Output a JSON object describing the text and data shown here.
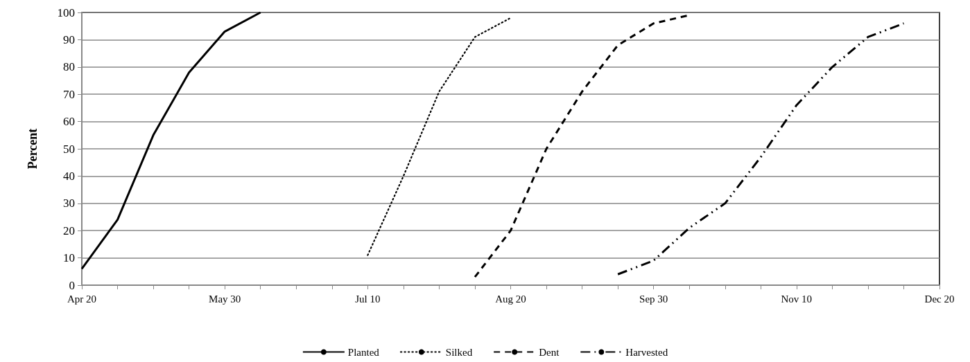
{
  "chart_data": {
    "type": "line",
    "ylabel": "Percent",
    "categories": [
      "Apr 20",
      null,
      null,
      null,
      "May 30",
      null,
      null,
      null,
      "Jul 10",
      null,
      null,
      null,
      "Aug 20",
      null,
      null,
      null,
      "Sep 30",
      null,
      null,
      null,
      "Nov 10",
      null,
      null,
      null,
      "Dec 20"
    ],
    "series": [
      {
        "name": "Planted",
        "color": "#000000",
        "line_style": "solid",
        "values": [
          6,
          24,
          55,
          78,
          93,
          100,
          null,
          null,
          null,
          null,
          null,
          null,
          null,
          null,
          null,
          null,
          null,
          null,
          null,
          null,
          null,
          null,
          null,
          null,
          null
        ]
      },
      {
        "name": "Silked",
        "color": "#000000",
        "line_style": "dotted",
        "values": [
          null,
          null,
          null,
          null,
          null,
          null,
          null,
          null,
          11,
          40,
          71,
          91,
          98,
          null,
          null,
          null,
          null,
          null,
          null,
          null,
          null,
          null,
          null,
          null,
          null
        ]
      },
      {
        "name": "Dent",
        "color": "#000000",
        "line_style": "dashed",
        "values": [
          null,
          null,
          null,
          null,
          null,
          null,
          null,
          null,
          null,
          null,
          null,
          3,
          20,
          50,
          71,
          88,
          96,
          99,
          null,
          null,
          null,
          null,
          null,
          null,
          null
        ]
      },
      {
        "name": "Harvested",
        "color": "#000000",
        "line_style": "dashdot",
        "values": [
          null,
          null,
          null,
          null,
          null,
          null,
          null,
          null,
          null,
          null,
          null,
          null,
          null,
          null,
          null,
          4,
          9,
          21,
          30,
          47,
          66,
          80,
          91,
          96,
          null
        ]
      }
    ],
    "ylim": [
      0,
      100
    ],
    "yticks": [
      0,
      10,
      20,
      30,
      40,
      50,
      60,
      70,
      80,
      90,
      100
    ],
    "grid": "y",
    "legend": "bottom",
    "marker": "none"
  }
}
